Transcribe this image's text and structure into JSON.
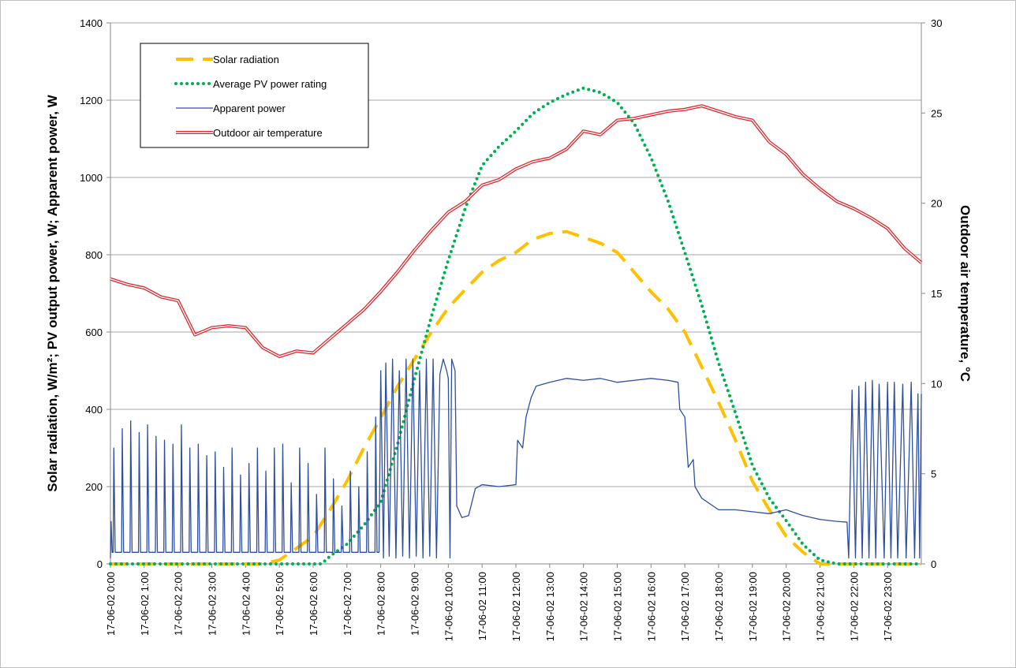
{
  "chart_data": {
    "type": "line",
    "ylabel": "Solar radiation, W/m²; PV output power, W; Apparent power, W",
    "y2label": "Outdoor air temperature, °C",
    "xlim": [
      0,
      24
    ],
    "xticks": [
      {
        "value": 0,
        "label": "17-06-02 0:00"
      },
      {
        "value": 1,
        "label": "17-06-02 1:00"
      },
      {
        "value": 2,
        "label": "17-06-02 2:00"
      },
      {
        "value": 3,
        "label": "17-06-02 3:00"
      },
      {
        "value": 4,
        "label": "17-06-02 4:00"
      },
      {
        "value": 5,
        "label": "17-06-02 5:00"
      },
      {
        "value": 6,
        "label": "17-06-02 6:00"
      },
      {
        "value": 7,
        "label": "17-06-02 7:00"
      },
      {
        "value": 8,
        "label": "17-06-02 8:00"
      },
      {
        "value": 9,
        "label": "17-06-02 9:00"
      },
      {
        "value": 10,
        "label": "17-06-02 10:00"
      },
      {
        "value": 11,
        "label": "17-06-02 11:00"
      },
      {
        "value": 12,
        "label": "17-06-02 12:00"
      },
      {
        "value": 13,
        "label": "17-06-02 13:00"
      },
      {
        "value": 14,
        "label": "17-06-02 14:00"
      },
      {
        "value": 15,
        "label": "17-06-02 15:00"
      },
      {
        "value": 16,
        "label": "17-06-02 16:00"
      },
      {
        "value": 17,
        "label": "17-06-02 17:00"
      },
      {
        "value": 18,
        "label": "17-06-02 18:00"
      },
      {
        "value": 19,
        "label": "17-06-02 19:00"
      },
      {
        "value": 20,
        "label": "17-06-02 20:00"
      },
      {
        "value": 21,
        "label": "17-06-02 21:00"
      },
      {
        "value": 22,
        "label": "17-06-02 22:00"
      },
      {
        "value": 23,
        "label": "17-06-02 23:00"
      }
    ],
    "ylim": [
      0,
      1400
    ],
    "yticks": [
      0,
      200,
      400,
      600,
      800,
      1000,
      1200,
      1400
    ],
    "y2lim": [
      0,
      30
    ],
    "y2ticks": [
      0,
      5,
      10,
      15,
      20,
      25,
      30
    ],
    "grid": true,
    "legend": "upper left",
    "series": [
      {
        "name": "Solar radiation",
        "color": "#ffc000",
        "style": "dashed",
        "x": [
          0,
          4.5,
          5,
          5.5,
          6,
          6.5,
          7,
          7.5,
          8,
          8.5,
          9,
          9.5,
          10,
          10.5,
          11,
          11.5,
          12,
          12.5,
          13,
          13.5,
          14,
          14.5,
          15,
          15.5,
          16,
          16.5,
          17,
          17.5,
          18,
          18.5,
          19,
          19.5,
          20,
          20.5,
          21,
          21.5,
          24
        ],
        "values": [
          0,
          0,
          10,
          40,
          71,
          140,
          214,
          300,
          378,
          460,
          530,
          600,
          663,
          710,
          755,
          785,
          806,
          840,
          855,
          860,
          845,
          830,
          806,
          755,
          704,
          660,
          600,
          510,
          418,
          320,
          214,
          140,
          71,
          30,
          0,
          0,
          0
        ]
      },
      {
        "name": "Average PV power rating",
        "color": "#00b050",
        "style": "dotted",
        "x": [
          0,
          6.25,
          6.5,
          7,
          7.5,
          8,
          8.5,
          9,
          9.5,
          10,
          10.5,
          11,
          11.5,
          12,
          12.5,
          13,
          13.5,
          14,
          14.5,
          15,
          15.5,
          16,
          16.5,
          17,
          17.5,
          18,
          18.5,
          19,
          19.5,
          20,
          20.5,
          21,
          21.5,
          24
        ],
        "values": [
          0,
          0,
          20,
          51,
          100,
          160,
          310,
          480,
          640,
          786,
          920,
          1031,
          1080,
          1120,
          1165,
          1194,
          1215,
          1231,
          1220,
          1194,
          1140,
          1051,
          940,
          806,
          670,
          520,
          390,
          255,
          170,
          112,
          50,
          10,
          0,
          0
        ]
      },
      {
        "name": "Apparent power",
        "color": "#2e4f9e",
        "style": "solid",
        "x": [
          0,
          0.02,
          0.05,
          0.08,
          0.1,
          0.14,
          0.33,
          0.35,
          0.39,
          0.58,
          0.6,
          0.64,
          0.83,
          0.85,
          0.89,
          1.08,
          1.1,
          1.14,
          1.33,
          1.35,
          1.39,
          1.58,
          1.6,
          1.64,
          1.83,
          1.85,
          1.89,
          2.08,
          2.1,
          2.14,
          2.33,
          2.35,
          2.39,
          2.58,
          2.6,
          2.64,
          2.83,
          2.85,
          2.89,
          3.08,
          3.1,
          3.14,
          3.33,
          3.35,
          3.39,
          3.58,
          3.6,
          3.64,
          3.83,
          3.85,
          3.89,
          4.08,
          4.1,
          4.14,
          4.33,
          4.35,
          4.39,
          4.58,
          4.6,
          4.64,
          4.83,
          4.85,
          4.89,
          5.08,
          5.1,
          5.14,
          5.33,
          5.35,
          5.39,
          5.58,
          5.6,
          5.64,
          5.83,
          5.85,
          5.89,
          6.08,
          6.1,
          6.14,
          6.33,
          6.35,
          6.39,
          6.58,
          6.6,
          6.64,
          6.83,
          6.85,
          6.89,
          7.08,
          7.1,
          7.14,
          7.33,
          7.35,
          7.39,
          7.58,
          7.6,
          7.64,
          7.83,
          7.85,
          7.89,
          7.95,
          8.0,
          8.08,
          8.15,
          8.25,
          8.35,
          8.45,
          8.55,
          8.65,
          8.75,
          8.85,
          8.95,
          9.05,
          9.15,
          9.25,
          9.35,
          9.45,
          9.55,
          9.65,
          9.75,
          9.85,
          9.95,
          10.0,
          10.05,
          10.1,
          10.2,
          10.25,
          10.4,
          10.6,
          10.8,
          11.0,
          11.5,
          12.0,
          12.05,
          12.2,
          12.3,
          12.45,
          12.6,
          13.0,
          13.5,
          14.0,
          14.5,
          15.0,
          15.5,
          16.0,
          16.5,
          16.8,
          16.85,
          17.0,
          17.1,
          17.25,
          17.3,
          17.5,
          18.0,
          18.5,
          19.0,
          19.5,
          20.0,
          20.5,
          21.0,
          21.5,
          21.8,
          21.85,
          21.95,
          22.05,
          22.15,
          22.25,
          22.35,
          22.45,
          22.55,
          22.65,
          22.75,
          22.9,
          23.0,
          23.1,
          23.2,
          23.3,
          23.45,
          23.55,
          23.7,
          23.8,
          23.9,
          23.95,
          24.0
        ],
        "values": [
          15,
          110,
          30,
          30,
          300,
          30,
          30,
          350,
          30,
          30,
          370,
          30,
          30,
          340,
          30,
          30,
          360,
          30,
          30,
          330,
          30,
          30,
          320,
          30,
          30,
          310,
          30,
          30,
          360,
          30,
          30,
          300,
          30,
          30,
          310,
          30,
          30,
          280,
          30,
          30,
          290,
          30,
          30,
          250,
          30,
          30,
          300,
          30,
          30,
          230,
          30,
          30,
          260,
          30,
          30,
          300,
          30,
          30,
          240,
          30,
          30,
          300,
          30,
          30,
          310,
          30,
          30,
          210,
          30,
          30,
          300,
          30,
          30,
          260,
          30,
          30,
          180,
          30,
          30,
          300,
          30,
          30,
          220,
          30,
          30,
          150,
          30,
          30,
          240,
          30,
          30,
          200,
          30,
          30,
          290,
          30,
          30,
          380,
          30,
          30,
          500,
          15,
          520,
          20,
          530,
          15,
          500,
          20,
          530,
          15,
          530,
          20,
          500,
          15,
          530,
          20,
          530,
          15,
          490,
          530,
          500,
          480,
          15,
          530,
          500,
          150,
          120,
          125,
          195,
          205,
          200,
          205,
          320,
          300,
          380,
          430,
          460,
          470,
          480,
          475,
          480,
          470,
          475,
          480,
          475,
          470,
          400,
          380,
          250,
          270,
          200,
          170,
          140,
          140,
          135,
          130,
          140,
          125,
          115,
          110,
          108,
          15,
          450,
          15,
          460,
          15,
          470,
          15,
          475,
          15,
          465,
          15,
          470,
          15,
          470,
          15,
          465,
          15,
          470,
          15,
          440,
          15,
          440
        ]
      },
      {
        "name": "Outdoor air temperature",
        "color": "#e0282c",
        "style": "double",
        "axis": "y2",
        "x": [
          0,
          0.5,
          1,
          1.5,
          2,
          2.5,
          3,
          3.5,
          4,
          4.5,
          5,
          5.5,
          6,
          6.5,
          7,
          7.5,
          8,
          8.5,
          9,
          9.5,
          10,
          10.5,
          11,
          11.5,
          12,
          12.5,
          13,
          13.5,
          14,
          14.5,
          15,
          15.5,
          16,
          16.5,
          17,
          17.5,
          18,
          18.5,
          19,
          19.5,
          20,
          20.5,
          21,
          21.5,
          22,
          22.5,
          23,
          23.5,
          24
        ],
        "values": [
          15.8,
          15.5,
          15.3,
          14.8,
          14.6,
          12.7,
          13.1,
          13.2,
          13.1,
          12.0,
          11.5,
          11.8,
          11.7,
          12.5,
          13.3,
          14.1,
          15.1,
          16.2,
          17.4,
          18.5,
          19.5,
          20.1,
          21.0,
          21.3,
          21.9,
          22.3,
          22.5,
          23.0,
          24.0,
          23.8,
          24.6,
          24.7,
          24.9,
          25.1,
          25.2,
          25.4,
          25.1,
          24.8,
          24.6,
          23.4,
          22.7,
          21.6,
          20.8,
          20.1,
          19.7,
          19.2,
          18.6,
          17.5,
          16.7
        ]
      }
    ]
  }
}
